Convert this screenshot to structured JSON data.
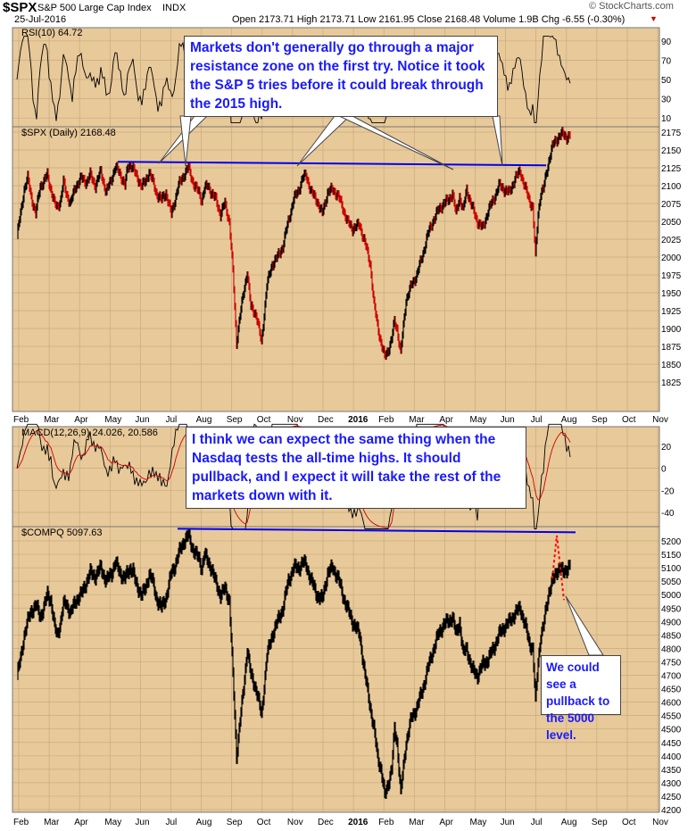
{
  "header": {
    "symbol": "$SPX",
    "name": "S&P 500 Large Cap Index",
    "exchange": "INDX",
    "date": "25-Jul-2016",
    "quote": "Open 2173.71  High 2173.71  Low 2161.95  Close 2168.48  Volume 1.9B  Chg -6.55 (-0.30%)",
    "watermark": "© StockCharts.com"
  },
  "colors": {
    "panel_bg": "#e8c99a",
    "annotation_blue": "#1a1aff",
    "line_blue": "#0000ee",
    "down_red": "#cc0000",
    "pullback_red": "#ff0000"
  },
  "annotations": {
    "spx_note": "Markets don't generally go through a major resistance zone on the first try. Notice it took the S&P 5 tries before it could break through the 2015 high.",
    "nasdaq_note": "I think we can expect the same thing when the Nasdaq tests the all-time highs. It should pullback, and I expect it will take the rest of the markets down with it.",
    "pullback_note": "We could see a pullback to the 5000 level."
  },
  "chart_data": [
    {
      "type": "line",
      "name": "RSI",
      "label": "RSI(10) 64.72",
      "y_ticks": [
        90,
        70,
        50,
        30,
        10
      ]
    },
    {
      "type": "candlestick",
      "name": "SPX",
      "label": "$SPX (Daily) 2168.48",
      "y_ticks": [
        2175,
        2150,
        2125,
        2100,
        2075,
        2050,
        2025,
        2000,
        1975,
        1950,
        1925,
        1900,
        1875,
        1850,
        1825
      ],
      "x_ticks": [
        "Feb",
        "Mar",
        "Apr",
        "May",
        "Jun",
        "Jul",
        "Aug",
        "Sep",
        "Oct",
        "Nov",
        "Dec",
        "2016",
        "Feb",
        "Mar",
        "Apr",
        "May",
        "Jun",
        "Jul",
        "Aug",
        "Sep",
        "Oct",
        "Nov"
      ],
      "resistance": 2131,
      "x": [
        0,
        4,
        8,
        12,
        16,
        21,
        26,
        30,
        34,
        38,
        42,
        45,
        49,
        52,
        55,
        60,
        66,
        72,
        78,
        82,
        88,
        94,
        100,
        106,
        110,
        114,
        118,
        121,
        124,
        127,
        130,
        133,
        140,
        144,
        148,
        151,
        156,
        162,
        167,
        171,
        173,
        176,
        181,
        187,
        192,
        196,
        199,
        204,
        207,
        210,
        214,
        218,
        223,
        228,
        233,
        238,
        242,
        246,
        249,
        254,
        258,
        262,
        268,
        274,
        280,
        286,
        292,
        298,
        304,
        310,
        316,
        320,
        324,
        330,
        336,
        342,
        348,
        354,
        360,
        365,
        370,
        376,
        384,
        390,
        396,
        400,
        404,
        408,
        412,
        416,
        420,
        423,
        426,
        430,
        436,
        442,
        448,
        454,
        460,
        466,
        472,
        478,
        484,
        488,
        492,
        496,
        500,
        504,
        510,
        516,
        522,
        528,
        534,
        540,
        546,
        552,
        558,
        564,
        570,
        574,
        578,
        581,
        584,
        587,
        590,
        593,
        596,
        599,
        602,
        605,
        608,
        612,
        616,
        620
      ],
      "close": [
        2030,
        2060,
        2095,
        2110,
        2085,
        2060,
        2100,
        2105,
        2115,
        2095,
        2075,
        2070,
        2080,
        2105,
        2090,
        2075,
        2100,
        2110,
        2105,
        2115,
        2100,
        2120,
        2090,
        2110,
        2125,
        2120,
        2110,
        2100,
        2125,
        2130,
        2125,
        2115,
        2100,
        2105,
        2120,
        2110,
        2090,
        2080,
        2090,
        2070,
        2060,
        2075,
        2100,
        2115,
        2125,
        2110,
        2100,
        2090,
        2080,
        2095,
        2100,
        2090,
        2080,
        2060,
        2075,
        2050,
        1980,
        1880,
        1910,
        1950,
        1980,
        1930,
        1920,
        1880,
        1960,
        1990,
        2000,
        2015,
        2050,
        2080,
        2095,
        2110,
        2115,
        2090,
        2080,
        2060,
        2090,
        2095,
        2085,
        2070,
        2050,
        2040,
        2045,
        2020,
        1990,
        1935,
        1905,
        1880,
        1860,
        1870,
        1885,
        1910,
        1900,
        1865,
        1940,
        1960,
        1975,
        2000,
        2030,
        2050,
        2065,
        2075,
        2080,
        2090,
        2060,
        2085,
        2065,
        2095,
        2070,
        2050,
        2040,
        2065,
        2080,
        2100,
        2095,
        2090,
        2110,
        2120,
        2095,
        2080,
        2070,
        2000,
        2060,
        2090,
        2095,
        2115,
        2135,
        2150,
        2160,
        2165,
        2170,
        2172,
        2168,
        2170
      ]
    },
    {
      "type": "line",
      "name": "MACD",
      "label": "MACD(12,26,9) 24.026, 20.586",
      "y_ticks": [
        20,
        0,
        -20,
        -40
      ]
    },
    {
      "type": "line",
      "name": "COMPQ",
      "label": "$COMPQ 5097.63",
      "y_ticks": [
        5200,
        5150,
        5100,
        5050,
        5000,
        4950,
        4900,
        4850,
        4800,
        4750,
        4700,
        4650,
        4600,
        4550,
        4500,
        4450,
        4400,
        4350,
        4300,
        4250,
        4200
      ],
      "x_ticks": [
        "Feb",
        "Mar",
        "Apr",
        "May",
        "Jun",
        "Jul",
        "Aug",
        "Sep",
        "Oct",
        "Nov",
        "Dec",
        "2016",
        "Feb",
        "Mar",
        "Apr",
        "May",
        "Jun",
        "Jul",
        "Aug",
        "Sep",
        "Oct",
        "Nov"
      ],
      "resistance": 5232,
      "projection": [
        5220,
        5000
      ],
      "x": [
        0,
        4,
        8,
        12,
        16,
        21,
        26,
        30,
        34,
        38,
        42,
        45,
        49,
        52,
        55,
        60,
        66,
        72,
        78,
        82,
        88,
        94,
        100,
        106,
        110,
        114,
        118,
        121,
        124,
        127,
        130,
        133,
        140,
        144,
        148,
        151,
        156,
        162,
        167,
        171,
        173,
        176,
        181,
        187,
        192,
        196,
        199,
        204,
        207,
        210,
        214,
        218,
        223,
        228,
        233,
        238,
        242,
        246,
        249,
        254,
        258,
        262,
        268,
        274,
        280,
        286,
        292,
        298,
        304,
        310,
        316,
        320,
        324,
        330,
        336,
        342,
        348,
        354,
        360,
        365,
        370,
        376,
        384,
        390,
        396,
        400,
        404,
        408,
        412,
        416,
        420,
        423,
        426,
        430,
        436,
        442,
        448,
        454,
        460,
        466,
        472,
        478,
        484,
        488,
        492,
        496,
        500,
        504,
        510,
        516,
        522,
        528,
        534,
        540,
        546,
        552,
        558,
        564,
        570,
        574,
        578,
        581,
        584,
        587,
        590,
        593,
        596,
        599,
        602,
        605,
        608,
        612,
        616,
        620
      ],
      "close": [
        4700,
        4760,
        4850,
        4900,
        4940,
        4960,
        4920,
        4950,
        5000,
        4980,
        4880,
        4850,
        4900,
        4960,
        4970,
        4930,
        4980,
        5000,
        5050,
        5080,
        5070,
        5100,
        5050,
        5080,
        5120,
        5090,
        5070,
        5060,
        5080,
        5100,
        5090,
        5040,
        5000,
        5020,
        5080,
        5060,
        4990,
        4950,
        4990,
        5050,
        5080,
        5100,
        5150,
        5200,
        5220,
        5180,
        5160,
        5130,
        5100,
        5150,
        5120,
        5100,
        5040,
        5000,
        5020,
        4980,
        4700,
        4400,
        4500,
        4650,
        4800,
        4700,
        4650,
        4550,
        4770,
        4850,
        4900,
        4950,
        5050,
        5100,
        5100,
        5120,
        5110,
        5050,
        5000,
        4980,
        5080,
        5100,
        5060,
        5000,
        4950,
        4900,
        4850,
        4700,
        4580,
        4500,
        4400,
        4350,
        4250,
        4300,
        4350,
        4500,
        4450,
        4260,
        4450,
        4540,
        4580,
        4640,
        4720,
        4790,
        4850,
        4890,
        4900,
        4920,
        4850,
        4900,
        4780,
        4800,
        4720,
        4700,
        4740,
        4760,
        4800,
        4850,
        4880,
        4900,
        4930,
        4950,
        4880,
        4820,
        4800,
        4600,
        4750,
        4850,
        4880,
        4950,
        5010,
        5040,
        5060,
        5090,
        5100,
        5080,
        5097,
        5110
      ]
    }
  ]
}
